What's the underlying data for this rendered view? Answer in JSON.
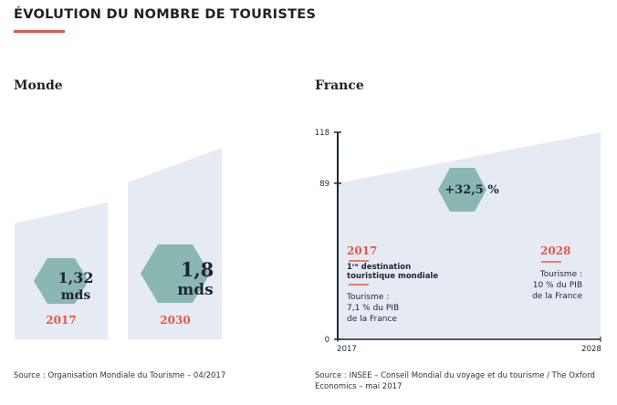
{
  "page": {
    "title": "ÉVOLUTION DU NOMBRE DE TOURISTES",
    "accent_color": "#e4574a",
    "band_color": "#e6eaf2",
    "hex_color": "#8ab7b1"
  },
  "monde": {
    "label": "Monde",
    "items": [
      {
        "value_num": "1,32",
        "value_unit": "mds",
        "year": "2017",
        "magnitude": 1.32
      },
      {
        "value_num": "1,8",
        "value_unit": "mds",
        "year": "2030",
        "magnitude": 1.8
      }
    ],
    "source": "Source : Organisation Mondiale du Tourisme – 04/2017"
  },
  "france": {
    "label": "France",
    "growth_badge": "+32,5 %",
    "start": {
      "year": "2017",
      "headline_1": "1ʳᵉ destination",
      "headline_2": "touristique mondiale",
      "text": [
        "Tourisme :",
        "7,1 % du PIB",
        "de la France"
      ]
    },
    "end": {
      "year": "2028",
      "text": [
        "Tourisme :",
        "10 % du PIB",
        "de la France"
      ]
    },
    "source_line1": "Source : INSEE – Conseil Mondial du voyage et du tourisme / The Oxford",
    "source_line2": "Economics – mai 2017"
  },
  "chart_data": {
    "type": "area",
    "x": [
      2017,
      2028
    ],
    "xticks": [
      "2017",
      "2028"
    ],
    "y": [
      89,
      118
    ],
    "yticks": [
      "0",
      "89",
      "118"
    ],
    "ylim": [
      0,
      118
    ],
    "grid": false
  }
}
